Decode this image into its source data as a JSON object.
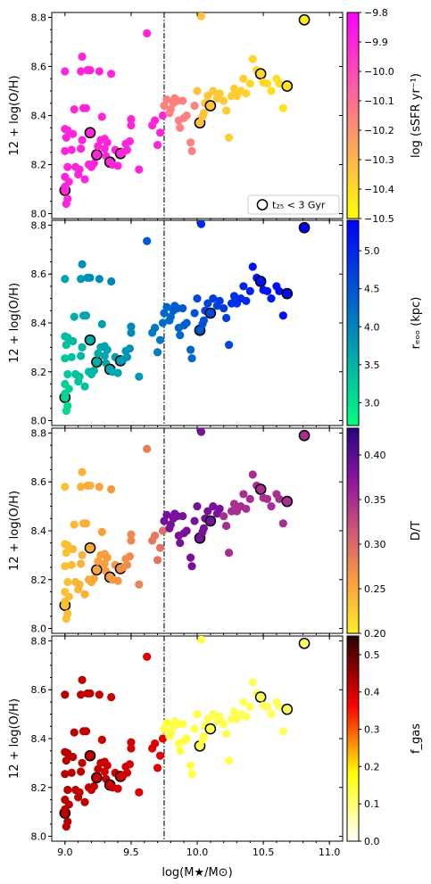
{
  "chart_data": [
    {
      "type": "scatter",
      "panel_index": 0,
      "ylabel": "12 + log(O/H)",
      "colorbar_label": "log (sSFR yr⁻¹)",
      "colorbar_ticks": [
        -9.8,
        -9.9,
        -10.0,
        -10.1,
        -10.2,
        -10.3,
        -10.4,
        -10.5
      ],
      "colorbar_tick_labels": [
        "−9.8",
        "−9.9",
        "−10.0",
        "−10.1",
        "−10.2",
        "−10.3",
        "−10.4",
        "−10.5"
      ],
      "colorbar_range": [
        -10.5,
        -9.8
      ],
      "colormap": "spring",
      "legend": {
        "label": "t₂₅ < 3 Gyr",
        "placement": "lower-right"
      },
      "show_legend": true
    },
    {
      "type": "scatter",
      "panel_index": 1,
      "ylabel": "12 + log(O/H)",
      "colorbar_label": "rₑₒₒ (kpc)",
      "colorbar_ticks": [
        5.0,
        4.5,
        4.0,
        3.5,
        3.0
      ],
      "colorbar_tick_labels": [
        "5.0",
        "4.5",
        "4.0",
        "3.5",
        "3.0"
      ],
      "colorbar_range": [
        2.7,
        5.4
      ],
      "colormap": "winter"
    },
    {
      "type": "scatter",
      "panel_index": 2,
      "ylabel": "12 + log(O/H)",
      "colorbar_label": "D/T",
      "colorbar_ticks": [
        0.4,
        0.35,
        0.3,
        0.25,
        0.2
      ],
      "colorbar_tick_labels": [
        "0.40",
        "0.35",
        "0.30",
        "0.25",
        "0.20"
      ],
      "colorbar_range": [
        0.2,
        0.43
      ],
      "colormap": "plasma_r"
    },
    {
      "type": "scatter",
      "panel_index": 3,
      "ylabel": "12 + log(O/H)",
      "xlabel": "log(M★/M⊙)",
      "colorbar_label": "f_gas",
      "colorbar_ticks": [
        0.5,
        0.4,
        0.3,
        0.2,
        0.1,
        0.0
      ],
      "colorbar_tick_labels": [
        "0.5",
        "0.4",
        "0.3",
        "0.2",
        "0.1",
        "0.0"
      ],
      "colorbar_range": [
        0.0,
        0.55
      ],
      "colormap": "hot_r"
    }
  ],
  "shared": {
    "xlim": [
      8.9,
      11.1
    ],
    "ylim": [
      7.98,
      8.82
    ],
    "xticks": [
      9.0,
      9.5,
      10.0,
      10.5,
      11.0
    ],
    "xtick_labels": [
      "9.0",
      "9.5",
      "10.0",
      "10.5",
      "11.0"
    ],
    "yticks": [
      8.0,
      8.2,
      8.4,
      8.6,
      8.8
    ],
    "ytick_labels": [
      "8.0",
      "8.2",
      "8.4",
      "8.6",
      "8.8"
    ],
    "vline_x": 9.75,
    "vline_style": "dash-dot",
    "colors": {
      "outline": "#000000",
      "vline": "#000000"
    }
  },
  "points": [
    {
      "x": 9.0,
      "y": 8.095,
      "o": true
    },
    {
      "x": 9.01,
      "y": 8.04
    },
    {
      "x": 9.02,
      "y": 8.06
    },
    {
      "x": 9.0,
      "y": 8.11
    },
    {
      "x": 9.03,
      "y": 8.13
    },
    {
      "x": 9.0,
      "y": 8.15
    },
    {
      "x": 9.02,
      "y": 8.19
    },
    {
      "x": 9.0,
      "y": 8.255
    },
    {
      "x": 9.05,
      "y": 8.26
    },
    {
      "x": 9.01,
      "y": 8.31
    },
    {
      "x": 9.0,
      "y": 8.345
    },
    {
      "x": 9.02,
      "y": 8.34
    },
    {
      "x": 9.06,
      "y": 8.325
    },
    {
      "x": 9.0,
      "y": 8.58
    },
    {
      "x": 9.07,
      "y": 8.425
    },
    {
      "x": 9.08,
      "y": 8.19
    },
    {
      "x": 9.1,
      "y": 8.16
    },
    {
      "x": 9.11,
      "y": 8.18
    },
    {
      "x": 9.12,
      "y": 8.265
    },
    {
      "x": 9.13,
      "y": 8.3
    },
    {
      "x": 9.14,
      "y": 8.43
    },
    {
      "x": 9.16,
      "y": 8.43
    },
    {
      "x": 9.15,
      "y": 8.14
    },
    {
      "x": 9.13,
      "y": 8.64
    },
    {
      "x": 9.12,
      "y": 8.58
    },
    {
      "x": 9.17,
      "y": 8.585
    },
    {
      "x": 9.19,
      "y": 8.585
    },
    {
      "x": 9.19,
      "y": 8.33,
      "o": true
    },
    {
      "x": 9.18,
      "y": 8.2
    },
    {
      "x": 9.2,
      "y": 8.19
    },
    {
      "x": 9.22,
      "y": 8.205
    },
    {
      "x": 9.24,
      "y": 8.24,
      "o": true
    },
    {
      "x": 9.25,
      "y": 8.275
    },
    {
      "x": 9.27,
      "y": 8.3
    },
    {
      "x": 9.28,
      "y": 8.395
    },
    {
      "x": 9.26,
      "y": 8.58
    },
    {
      "x": 9.3,
      "y": 8.305
    },
    {
      "x": 9.3,
      "y": 8.265
    },
    {
      "x": 9.31,
      "y": 8.235
    },
    {
      "x": 9.32,
      "y": 8.29
    },
    {
      "x": 9.34,
      "y": 8.21,
      "o": true
    },
    {
      "x": 9.35,
      "y": 8.57
    },
    {
      "x": 9.36,
      "y": 8.2
    },
    {
      "x": 9.38,
      "y": 8.26
    },
    {
      "x": 9.4,
      "y": 8.195
    },
    {
      "x": 9.42,
      "y": 8.245,
      "o": true
    },
    {
      "x": 9.44,
      "y": 8.25
    },
    {
      "x": 9.46,
      "y": 8.285
    },
    {
      "x": 9.47,
      "y": 8.26
    },
    {
      "x": 9.49,
      "y": 8.295
    },
    {
      "x": 9.5,
      "y": 8.36
    },
    {
      "x": 9.5,
      "y": 8.385
    },
    {
      "x": 9.56,
      "y": 8.18
    },
    {
      "x": 9.62,
      "y": 8.735
    },
    {
      "x": 9.66,
      "y": 8.36
    },
    {
      "x": 9.68,
      "y": 8.38
    },
    {
      "x": 9.7,
      "y": 8.28
    },
    {
      "x": 9.72,
      "y": 8.33
    },
    {
      "x": 9.74,
      "y": 8.4
    },
    {
      "x": 9.75,
      "y": 8.44
    },
    {
      "x": 9.77,
      "y": 8.465
    },
    {
      "x": 9.79,
      "y": 8.41
    },
    {
      "x": 9.8,
      "y": 8.425
    },
    {
      "x": 9.82,
      "y": 8.45
    },
    {
      "x": 9.83,
      "y": 8.47
    },
    {
      "x": 9.85,
      "y": 8.46
    },
    {
      "x": 9.86,
      "y": 8.38
    },
    {
      "x": 9.87,
      "y": 8.35
    },
    {
      "x": 9.89,
      "y": 8.46
    },
    {
      "x": 9.9,
      "y": 8.39
    },
    {
      "x": 9.92,
      "y": 8.4
    },
    {
      "x": 9.95,
      "y": 8.29
    },
    {
      "x": 9.96,
      "y": 8.255
    },
    {
      "x": 9.98,
      "y": 8.44
    },
    {
      "x": 10.0,
      "y": 8.5
    },
    {
      "x": 10.02,
      "y": 8.37,
      "o": true
    },
    {
      "x": 10.03,
      "y": 8.805
    },
    {
      "x": 10.04,
      "y": 8.395
    },
    {
      "x": 10.05,
      "y": 8.41
    },
    {
      "x": 10.06,
      "y": 8.45
    },
    {
      "x": 10.08,
      "y": 8.48
    },
    {
      "x": 10.1,
      "y": 8.44,
      "o": true
    },
    {
      "x": 10.12,
      "y": 8.5
    },
    {
      "x": 10.15,
      "y": 8.47
    },
    {
      "x": 10.17,
      "y": 8.49
    },
    {
      "x": 10.2,
      "y": 8.46
    },
    {
      "x": 10.22,
      "y": 8.42
    },
    {
      "x": 10.24,
      "y": 8.31
    },
    {
      "x": 10.26,
      "y": 8.48
    },
    {
      "x": 10.28,
      "y": 8.51
    },
    {
      "x": 10.3,
      "y": 8.48
    },
    {
      "x": 10.33,
      "y": 8.5
    },
    {
      "x": 10.35,
      "y": 8.55
    },
    {
      "x": 10.37,
      "y": 8.49
    },
    {
      "x": 10.4,
      "y": 8.53
    },
    {
      "x": 10.42,
      "y": 8.63
    },
    {
      "x": 10.45,
      "y": 8.585
    },
    {
      "x": 10.48,
      "y": 8.57,
      "o": true
    },
    {
      "x": 10.5,
      "y": 8.535
    },
    {
      "x": 10.53,
      "y": 8.53
    },
    {
      "x": 10.56,
      "y": 8.5
    },
    {
      "x": 10.6,
      "y": 8.55
    },
    {
      "x": 10.62,
      "y": 8.53
    },
    {
      "x": 10.65,
      "y": 8.43
    },
    {
      "x": 10.68,
      "y": 8.52,
      "o": true
    },
    {
      "x": 10.81,
      "y": 8.79,
      "o": true
    }
  ]
}
